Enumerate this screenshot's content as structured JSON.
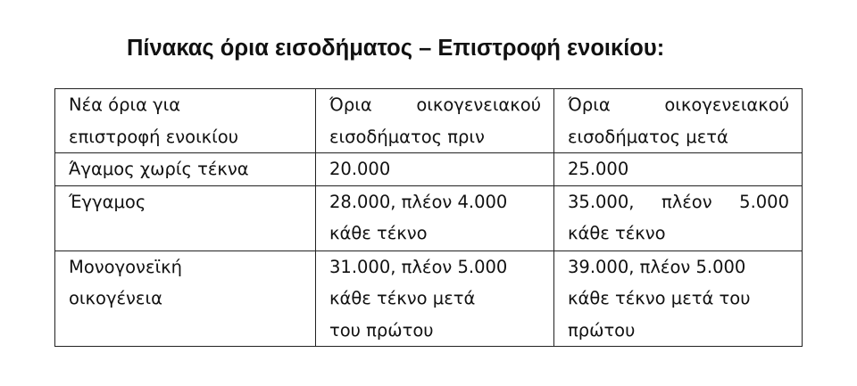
{
  "title": "Πίνακας όρια εισοδήματος – Επιστροφή ενοικίου:",
  "table": {
    "header": [
      [
        "Νέα όρια για",
        "επιστροφή ενοικίου"
      ],
      [
        "Όρια οικογενειακού",
        "εισοδήματος πριν"
      ],
      [
        "Όρια οικογενειακού",
        "εισοδήματος μετά"
      ]
    ],
    "rows": [
      [
        [
          "Άγαμος χωρίς τέκνα"
        ],
        [
          "20.000"
        ],
        [
          "25.000"
        ]
      ],
      [
        [
          "Έγγαμος"
        ],
        [
          "28.000, πλέον 4.000",
          "κάθε τέκνο"
        ],
        [
          "35.000, πλέον 5.000",
          "κάθε τέκνο"
        ]
      ],
      [
        [
          "Μονογονεϊκή",
          "οικογένεια"
        ],
        [
          "31.000, πλέον 5.000",
          "κάθε τέκνο μετά",
          "του πρώτου"
        ],
        [
          "39.000, πλέον 5.000",
          "κάθε τέκνο μετά του",
          "πρώτου"
        ]
      ]
    ]
  }
}
